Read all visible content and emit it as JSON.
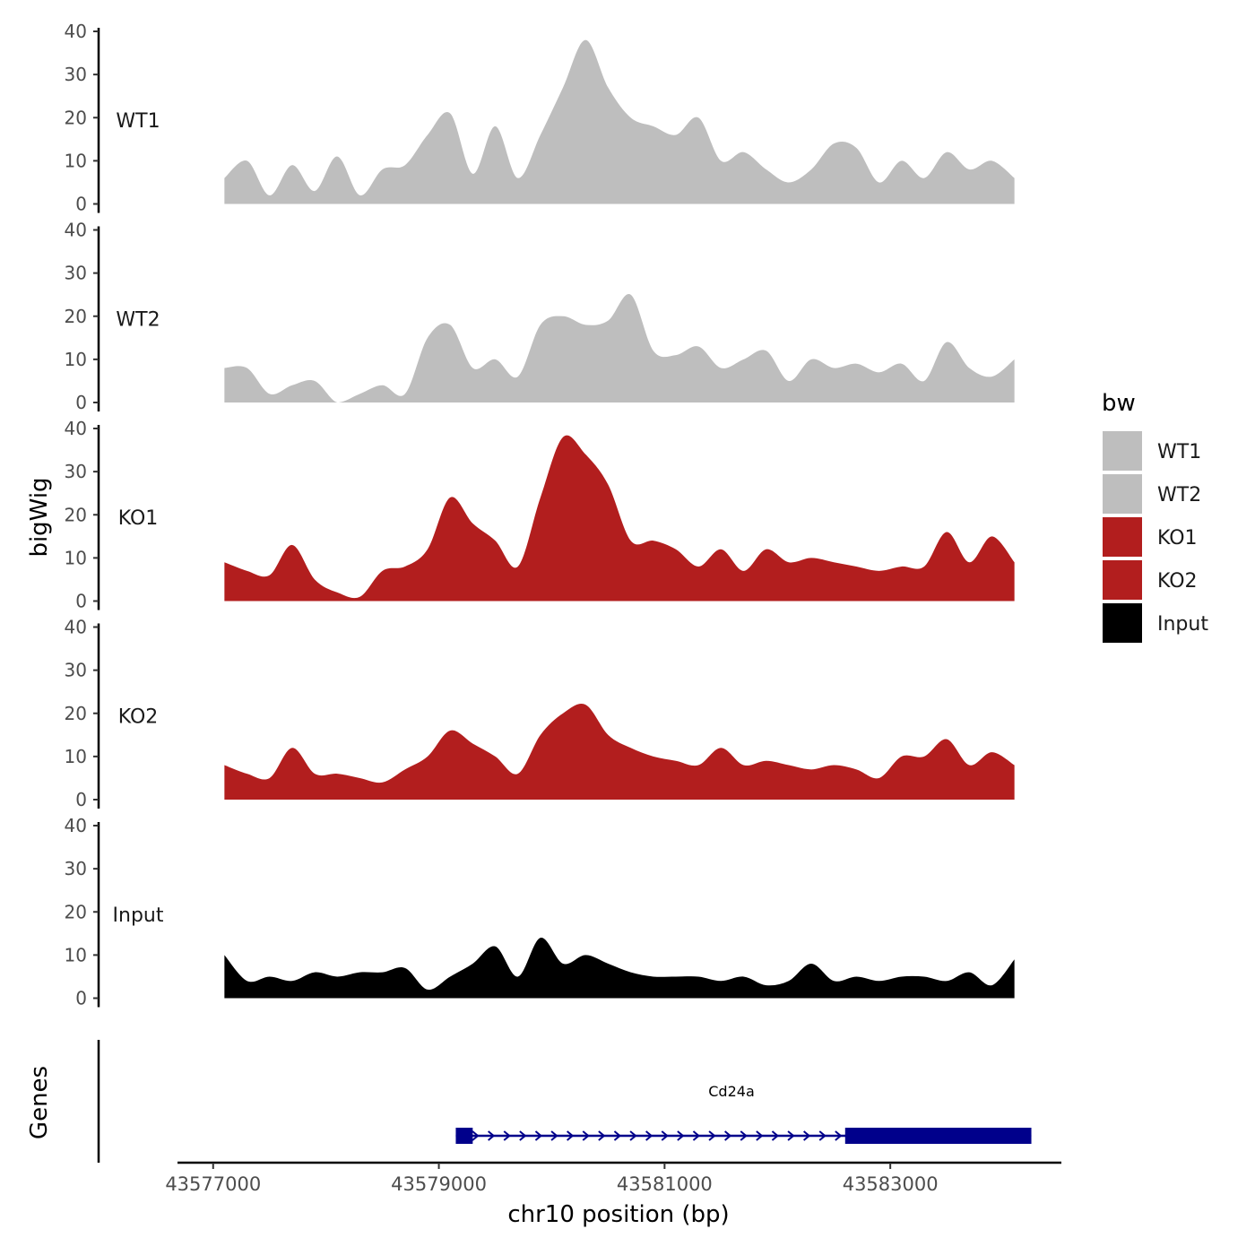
{
  "chart_data": {
    "type": "area",
    "title": "",
    "ylabel": "bigWig",
    "xlabel": "chr10 position (bp)",
    "xlim": [
      43576700,
      43584500
    ],
    "ylim": [
      0,
      40
    ],
    "y_ticks": [
      0,
      10,
      20,
      30,
      40
    ],
    "x_ticks": [
      43577000,
      43579000,
      43581000,
      43583000
    ],
    "x_tick_labels": [
      "43577000",
      "43579000",
      "43581000",
      "43583000"
    ],
    "legend": {
      "title": "bw",
      "position": "right",
      "entries": [
        {
          "label": "WT1",
          "color": "#bebebe"
        },
        {
          "label": "WT2",
          "color": "#bebebe"
        },
        {
          "label": "KO1",
          "color": "#b21e1e"
        },
        {
          "label": "KO2",
          "color": "#b21e1e"
        },
        {
          "label": "Input",
          "color": "#000000"
        }
      ]
    },
    "x": [
      43577100,
      43577300,
      43577500,
      43577700,
      43577900,
      43578100,
      43578300,
      43578500,
      43578700,
      43578900,
      43579100,
      43579300,
      43579500,
      43579700,
      43579900,
      43580100,
      43580300,
      43580500,
      43580700,
      43580900,
      43581100,
      43581300,
      43581500,
      43581700,
      43581900,
      43582100,
      43582300,
      43582500,
      43582700,
      43582900,
      43583100,
      43583300,
      43583500,
      43583700,
      43583900,
      43584100
    ],
    "series": [
      {
        "name": "WT1",
        "color": "#bebebe",
        "values": [
          6,
          10,
          2,
          9,
          3,
          11,
          2,
          8,
          9,
          16,
          21,
          7,
          18,
          6,
          16,
          27,
          38,
          27,
          20,
          18,
          16,
          20,
          10,
          12,
          8,
          5,
          8,
          14,
          13,
          5,
          10,
          6,
          12,
          8,
          10,
          6
        ]
      },
      {
        "name": "WT2",
        "color": "#bebebe",
        "values": [
          8,
          8,
          2,
          4,
          5,
          0,
          2,
          4,
          2,
          15,
          18,
          8,
          10,
          6,
          18,
          20,
          18,
          19,
          25,
          12,
          11,
          13,
          8,
          10,
          12,
          5,
          10,
          8,
          9,
          7,
          9,
          5,
          14,
          8,
          6,
          10
        ]
      },
      {
        "name": "KO1",
        "color": "#b21e1e",
        "values": [
          9,
          7,
          6,
          13,
          5,
          2,
          1,
          7,
          8,
          12,
          24,
          18,
          14,
          8,
          24,
          38,
          34,
          27,
          14,
          14,
          12,
          8,
          12,
          7,
          12,
          9,
          10,
          9,
          8,
          7,
          8,
          8,
          16,
          9,
          15,
          9
        ]
      },
      {
        "name": "KO2",
        "color": "#b21e1e",
        "values": [
          8,
          6,
          5,
          12,
          6,
          6,
          5,
          4,
          7,
          10,
          16,
          13,
          10,
          6,
          15,
          20,
          22,
          15,
          12,
          10,
          9,
          8,
          12,
          8,
          9,
          8,
          7,
          8,
          7,
          5,
          10,
          10,
          14,
          8,
          11,
          8
        ]
      },
      {
        "name": "Input",
        "color": "#000000",
        "values": [
          10,
          4,
          5,
          4,
          6,
          5,
          6,
          6,
          7,
          2,
          5,
          8,
          12,
          5,
          14,
          8,
          10,
          8,
          6,
          5,
          5,
          5,
          4,
          5,
          3,
          4,
          8,
          4,
          5,
          4,
          5,
          5,
          4,
          6,
          3,
          9
        ]
      }
    ],
    "gene_track": {
      "label": "Genes",
      "gene_name": "Cd24a",
      "color": "#00008b",
      "start": 43579150,
      "end": 43584250,
      "exons": [
        [
          43579150,
          43579300
        ],
        [
          43582600,
          43584250
        ]
      ]
    }
  }
}
